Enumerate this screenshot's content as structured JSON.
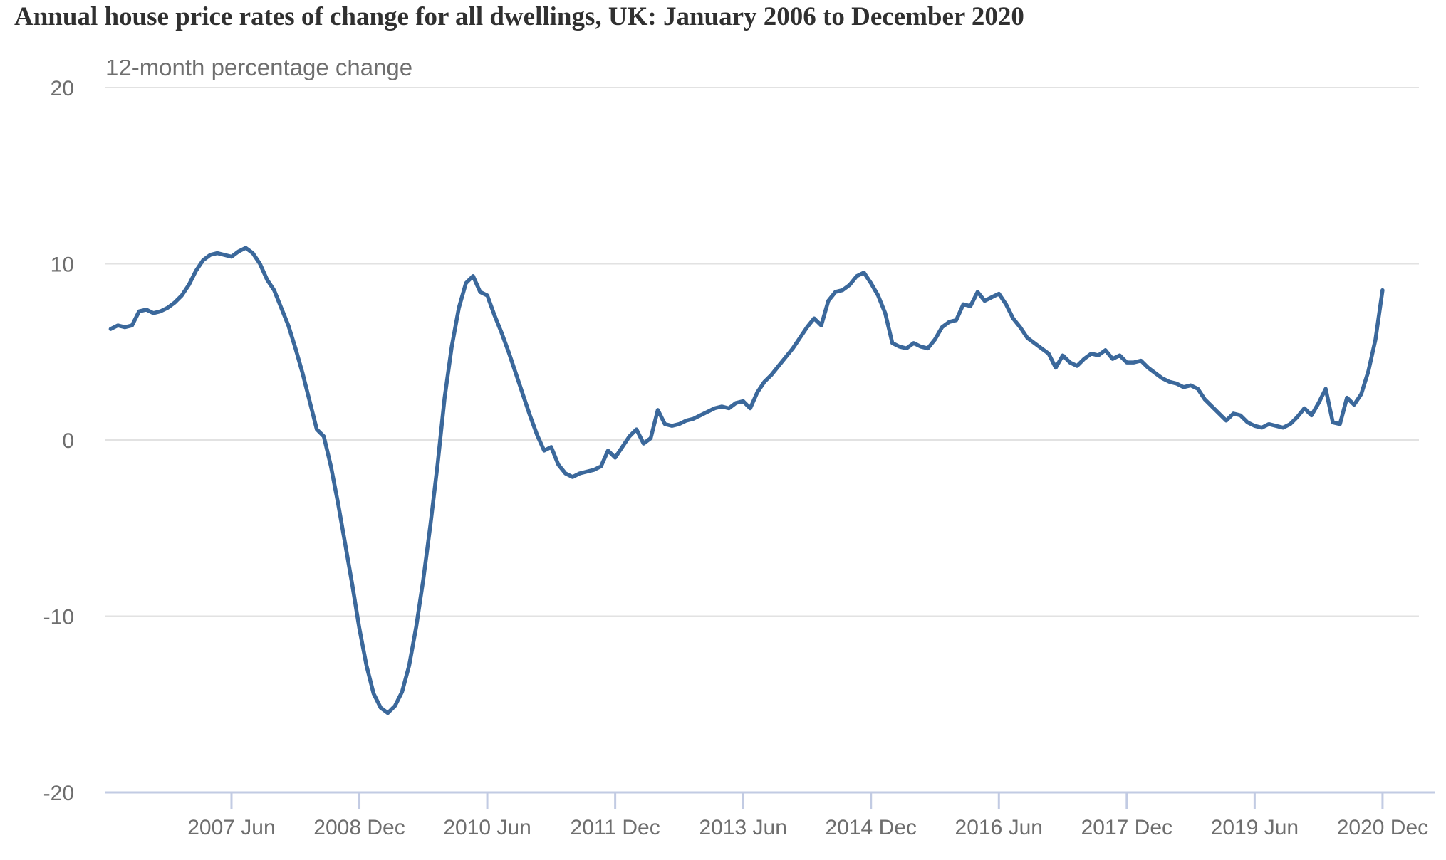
{
  "chart_data": {
    "type": "line",
    "title": "Annual house price rates of change for all dwellings, UK: January 2006 to December 2020",
    "subtitle": "12-month percentage change",
    "ylabel": "12-month percentage change",
    "xlabel": "",
    "ylim": [
      -20,
      20
    ],
    "y_ticks": [
      20,
      10,
      0,
      -10,
      -20
    ],
    "x_ticks": [
      {
        "label": "2007 Jun",
        "month_index": 17
      },
      {
        "label": "2008 Dec",
        "month_index": 35
      },
      {
        "label": "2010 Jun",
        "month_index": 53
      },
      {
        "label": "2011 Dec",
        "month_index": 71
      },
      {
        "label": "2013 Jun",
        "month_index": 89
      },
      {
        "label": "2014 Dec",
        "month_index": 107
      },
      {
        "label": "2016 Jun",
        "month_index": 125
      },
      {
        "label": "2017 Dec",
        "month_index": 143
      },
      {
        "label": "2019 Jun",
        "month_index": 161
      },
      {
        "label": "2020 Dec",
        "month_index": 179
      }
    ],
    "grid": "horizontal-only",
    "legend": "none",
    "series": [
      {
        "name": "12-month percentage change",
        "start": "2006 Jan",
        "end": "2020 Dec",
        "frequency": "monthly",
        "values": [
          6.3,
          6.5,
          6.4,
          6.5,
          7.3,
          7.4,
          7.2,
          7.3,
          7.5,
          7.8,
          8.2,
          8.8,
          9.6,
          10.2,
          10.5,
          10.6,
          10.5,
          10.4,
          10.7,
          10.9,
          10.6,
          10.0,
          9.1,
          8.5,
          7.5,
          6.5,
          5.2,
          3.8,
          2.2,
          0.6,
          0.2,
          -1.5,
          -3.6,
          -5.9,
          -8.2,
          -10.7,
          -12.8,
          -14.4,
          -15.2,
          -15.5,
          -15.1,
          -14.3,
          -12.8,
          -10.6,
          -7.9,
          -4.8,
          -1.4,
          2.4,
          5.3,
          7.5,
          8.9,
          9.3,
          8.4,
          8.2,
          7.1,
          6.1,
          5.0,
          3.8,
          2.6,
          1.4,
          0.3,
          -0.6,
          -0.4,
          -1.4,
          -1.9,
          -2.1,
          -1.9,
          -1.8,
          -1.7,
          -1.5,
          -0.6,
          -1.0,
          -0.4,
          0.2,
          0.6,
          -0.2,
          0.1,
          1.7,
          0.9,
          0.8,
          0.9,
          1.1,
          1.2,
          1.4,
          1.6,
          1.8,
          1.9,
          1.8,
          2.1,
          2.2,
          1.8,
          2.7,
          3.3,
          3.7,
          4.2,
          4.7,
          5.2,
          5.8,
          6.4,
          6.9,
          6.5,
          7.9,
          8.4,
          8.5,
          8.8,
          9.3,
          9.5,
          8.9,
          8.2,
          7.2,
          5.5,
          5.3,
          5.2,
          5.5,
          5.3,
          5.2,
          5.7,
          6.4,
          6.7,
          6.8,
          7.7,
          7.6,
          8.4,
          7.9,
          8.1,
          8.3,
          7.7,
          6.9,
          6.4,
          5.8,
          5.5,
          5.2,
          4.9,
          4.1,
          4.8,
          4.4,
          4.2,
          4.6,
          4.9,
          4.8,
          5.1,
          4.6,
          4.8,
          4.4,
          4.4,
          4.5,
          4.1,
          3.8,
          3.5,
          3.3,
          3.2,
          3.0,
          3.1,
          2.9,
          2.3,
          1.9,
          1.5,
          1.1,
          1.5,
          1.4,
          1.0,
          0.8,
          0.7,
          0.9,
          0.8,
          0.7,
          0.9,
          1.3,
          1.8,
          1.4,
          2.1,
          2.9,
          1.0,
          0.9,
          2.4,
          2.0,
          2.6,
          3.9,
          5.7,
          8.5
        ]
      }
    ],
    "colors": {
      "line": "#3b689b",
      "grid": "#e2e2e2",
      "axis": "#c2cbe3",
      "labels": "#6e6e6e",
      "title": "#303030",
      "subtitle": "#6f6f6f",
      "background": "#ffffff"
    }
  }
}
